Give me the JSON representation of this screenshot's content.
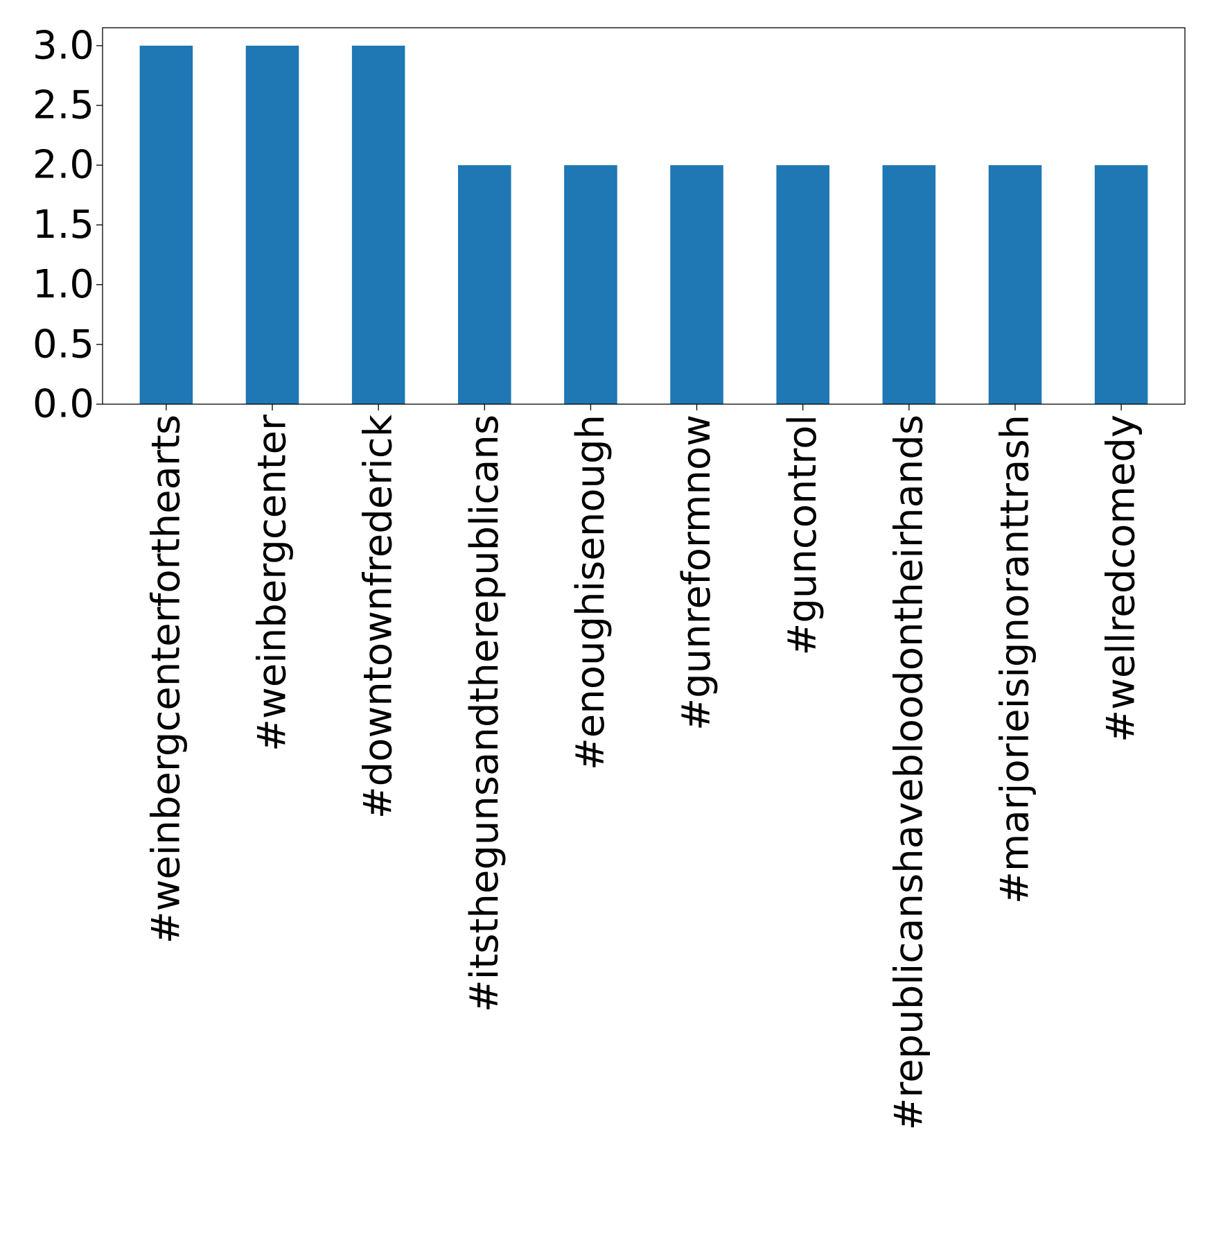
{
  "chart_data": {
    "type": "bar",
    "title": "",
    "xlabel": "",
    "ylabel": "",
    "categories": [
      "#weinbergcenterforthearts",
      "#weinbergcenter",
      "#downtownfrederick",
      "#itstheguns andtherepublicans",
      "#enoughisenough",
      "#gunreformnow",
      "#guncontrol",
      "#republicanshavebloodontheirhands",
      "#marjorieisignoranttrash",
      "#wellredcomedy"
    ],
    "values": [
      3,
      3,
      3,
      2,
      2,
      2,
      2,
      2,
      2,
      2
    ],
    "ylim": [
      0,
      3.15
    ],
    "yticks": [
      "0.0",
      "0.5",
      "1.0",
      "1.5",
      "2.0",
      "2.5",
      "3.0"
    ],
    "grid": false,
    "legend": "none",
    "bar_color": "#1f77b4"
  }
}
